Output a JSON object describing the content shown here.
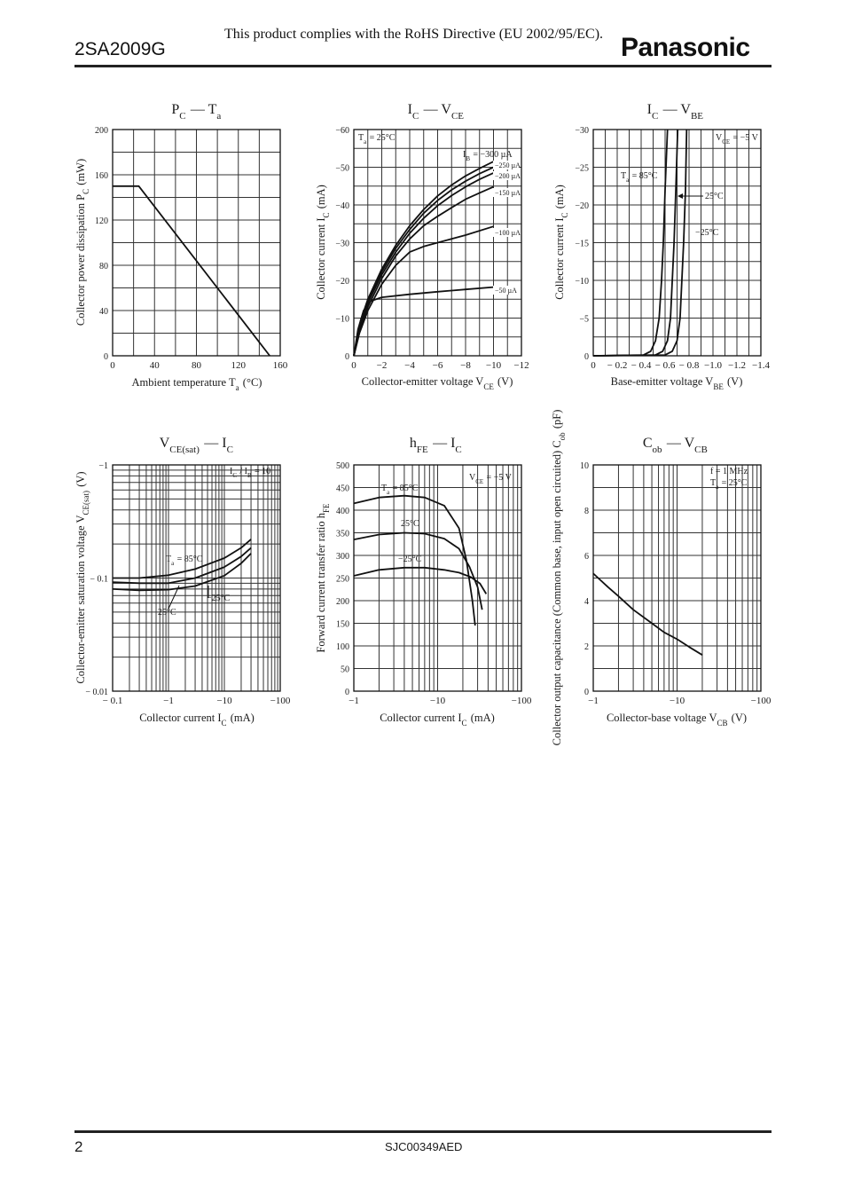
{
  "header": {
    "part_number": "2SA2009G",
    "rohs_notice": "This product complies with the RoHS Directive (EU 2002/95/EC).",
    "brand": "Panasonic"
  },
  "footer": {
    "page_number": "2",
    "doc_code": "SJC00349AED"
  },
  "chart_data": [
    {
      "id": "pc-ta",
      "type": "line",
      "title": "P_C — T_a",
      "xlabel": "Ambient temperature T_a (°C)",
      "ylabel": "Collector power dissipation P_C (mW)",
      "xlim": [
        0,
        160
      ],
      "ylim": [
        0,
        200
      ],
      "xscale": "linear",
      "yscale": "linear",
      "xticks": [
        0,
        40,
        80,
        120,
        160
      ],
      "yticks": [
        0,
        40,
        80,
        120,
        160,
        200
      ],
      "xtick_labels": [
        "0",
        "40",
        "80",
        "120",
        "160"
      ],
      "ytick_labels": [
        "0",
        "40",
        "80",
        "120",
        "160",
        "200"
      ],
      "grid": true,
      "series": [
        {
          "x": [
            0,
            25,
            150
          ],
          "y": [
            150,
            150,
            0
          ]
        }
      ],
      "annotations": []
    },
    {
      "id": "ic-vce",
      "type": "line",
      "title": "I_C — V_CE",
      "xlabel": "Collector-emitter voltage V_CE (V)",
      "ylabel": "Collector current I_C (mA)",
      "xlim": [
        0,
        -12
      ],
      "ylim": [
        0,
        -60
      ],
      "xscale": "linear",
      "yscale": "linear",
      "xticks": [
        0,
        -2,
        -4,
        -6,
        -8,
        -10,
        -12
      ],
      "yticks": [
        0,
        -10,
        -20,
        -30,
        -40,
        -50,
        -60
      ],
      "xtick_labels": [
        "0",
        "−2",
        "−4",
        "−6",
        "−8",
        "−10",
        "−12"
      ],
      "ytick_labels": [
        "0",
        "−10",
        "−20",
        "−30",
        "−40",
        "−50",
        "−60"
      ],
      "grid": true,
      "series": [
        {
          "name": "−50 µA",
          "x": [
            0,
            -0.3,
            -0.7,
            -1.2,
            -2,
            -4,
            -6,
            -8,
            -10
          ],
          "y": [
            0,
            -7,
            -12,
            -14.5,
            -15.5,
            -16.3,
            -17,
            -17.6,
            -18.2
          ]
        },
        {
          "name": "−100 µA",
          "x": [
            0,
            -0.4,
            -1,
            -2,
            -3,
            -4,
            -5,
            -6,
            -8,
            -10
          ],
          "y": [
            0,
            -6,
            -12,
            -19,
            -24,
            -27.5,
            -29,
            -30,
            -32,
            -34.3
          ]
        },
        {
          "name": "−150 µA",
          "x": [
            0,
            -0.5,
            -1,
            -2,
            -3,
            -4,
            -5,
            -6,
            -7,
            -8,
            -9,
            -10
          ],
          "y": [
            0,
            -8,
            -13,
            -20.5,
            -26.5,
            -31,
            -34.5,
            -37,
            -39.3,
            -41.5,
            -43.2,
            -44.8
          ]
        },
        {
          "name": "−200 µA",
          "x": [
            0,
            -0.5,
            -1,
            -2,
            -3,
            -4,
            -5,
            -6,
            -7,
            -8,
            -9,
            -10
          ],
          "y": [
            0,
            -8.5,
            -14,
            -21.5,
            -27.5,
            -32.5,
            -36.5,
            -39.8,
            -42.5,
            -44.8,
            -46.8,
            -48.5
          ]
        },
        {
          "name": "−250 µA",
          "x": [
            0,
            -0.5,
            -1,
            -2,
            -3,
            -4,
            -5,
            -6,
            -7,
            -8,
            -9,
            -10
          ],
          "y": [
            0,
            -9,
            -14.5,
            -22.3,
            -28.5,
            -33.5,
            -37.8,
            -41.2,
            -44,
            -46.3,
            -48.3,
            -50
          ]
        },
        {
          "name": "−300 µA",
          "x": [
            0,
            -0.5,
            -1,
            -2,
            -3,
            -4,
            -5,
            -6,
            -7,
            -8,
            -9,
            -10
          ],
          "y": [
            0,
            -9.5,
            -15,
            -23,
            -29.3,
            -34.5,
            -38.8,
            -42.4,
            -45.3,
            -47.7,
            -49.7,
            -51.5
          ]
        }
      ],
      "annotations": [
        "T_a = 25°C",
        "I_B = −300 µA",
        "−250 µA",
        "−200 µA",
        "−150 µA",
        "−100 µA",
        "−50 µA"
      ]
    },
    {
      "id": "ic-vbe",
      "type": "line",
      "title": "I_C — V_BE",
      "xlabel": "Base-emitter voltage V_BE (V)",
      "ylabel": "Collector current I_C (mA)",
      "xlim": [
        0,
        -1.4
      ],
      "ylim": [
        0,
        -30
      ],
      "xscale": "linear",
      "yscale": "linear",
      "xticks": [
        0,
        -0.2,
        -0.4,
        -0.6,
        -0.8,
        -1.0,
        -1.2,
        -1.4
      ],
      "yticks": [
        0,
        -5,
        -10,
        -15,
        -20,
        -25,
        -30
      ],
      "xtick_labels": [
        "0",
        "− 0.2",
        "− 0.4",
        "− 0.6",
        "− 0.8",
        "−1.0",
        "−1.2",
        "−1.4"
      ],
      "ytick_labels": [
        "0",
        "−5",
        "−10",
        "−15",
        "−20",
        "−25",
        "−30"
      ],
      "grid": true,
      "series": [
        {
          "name": "T_a = 85°C",
          "x": [
            0,
            -0.42,
            -0.48,
            -0.52,
            -0.55,
            -0.57,
            -0.585,
            -0.6,
            -0.62
          ],
          "y": [
            0,
            -0.1,
            -0.6,
            -2,
            -5,
            -10,
            -15,
            -22,
            -30
          ]
        },
        {
          "name": "25°C",
          "x": [
            0,
            -0.52,
            -0.58,
            -0.62,
            -0.645,
            -0.66,
            -0.675,
            -0.69,
            -0.705
          ],
          "y": [
            0,
            -0.1,
            -0.6,
            -2,
            -5,
            -10,
            -15,
            -22,
            -30
          ]
        },
        {
          "name": "−25°C",
          "x": [
            0,
            -0.6,
            -0.66,
            -0.7,
            -0.725,
            -0.74,
            -0.755,
            -0.77,
            -0.78
          ],
          "y": [
            0,
            -0.1,
            -0.6,
            -2,
            -5,
            -10,
            -15,
            -22,
            -30
          ]
        }
      ],
      "annotations": [
        "V_CE = −5 V",
        "T_a = 85°C",
        "25°C",
        "−25°C"
      ]
    },
    {
      "id": "vcesat-ic",
      "type": "line",
      "title": "V_CE(sat) — I_C",
      "xlabel": "Collector current I_C (mA)",
      "ylabel": "Collector-emitter saturation voltage V_CE(sat) (V)",
      "xlim": [
        -0.1,
        -100
      ],
      "ylim": [
        -0.01,
        -1
      ],
      "xscale": "log",
      "yscale": "log",
      "xticks": [
        -0.1,
        -1,
        -10,
        -100
      ],
      "yticks": [
        -0.01,
        -0.1,
        -1
      ],
      "xtick_labels": [
        "− 0.1",
        "−1",
        "−10",
        "−100"
      ],
      "ytick_labels": [
        "− 0.01",
        "− 0.1",
        "−1"
      ],
      "grid": true,
      "series": [
        {
          "name": "T_a = 85°C",
          "x": [
            -0.1,
            -0.3,
            -1,
            -3,
            -10,
            -20,
            -30
          ],
          "y": [
            -0.1,
            -0.1,
            -0.106,
            -0.12,
            -0.15,
            -0.185,
            -0.22
          ]
        },
        {
          "name": "25°C",
          "x": [
            -0.1,
            -0.3,
            -1,
            -3,
            -10,
            -20,
            -30
          ],
          "y": [
            -0.092,
            -0.09,
            -0.09,
            -0.1,
            -0.125,
            -0.155,
            -0.185
          ]
        },
        {
          "name": "−25°C",
          "x": [
            -0.1,
            -0.3,
            -1,
            -3,
            -10,
            -20,
            -30
          ],
          "y": [
            -0.08,
            -0.078,
            -0.079,
            -0.085,
            -0.105,
            -0.135,
            -0.165
          ]
        }
      ],
      "annotations": [
        "I_C / I_B = 10",
        "T_a = 85°C",
        "−25°C",
        "25°C"
      ]
    },
    {
      "id": "hfe-ic",
      "type": "line",
      "title": "h_FE — I_C",
      "xlabel": "Collector current I_C (mA)",
      "ylabel": "Forward current transfer ratio h_FE",
      "xlim": [
        -1,
        -100
      ],
      "ylim": [
        0,
        500
      ],
      "xscale": "log",
      "yscale": "linear",
      "xticks": [
        -1,
        -10,
        -100
      ],
      "yticks": [
        0,
        50,
        100,
        150,
        200,
        250,
        300,
        350,
        400,
        450,
        500
      ],
      "xtick_labels": [
        "−1",
        "−10",
        "−100"
      ],
      "ytick_labels": [
        "0",
        "50",
        "100",
        "150",
        "200",
        "250",
        "300",
        "350",
        "400",
        "450",
        "500"
      ],
      "grid": true,
      "series": [
        {
          "name": "T_a = 85°C",
          "x": [
            -1,
            -2,
            -4,
            -7,
            -12,
            -18,
            -22,
            -26,
            -28
          ],
          "y": [
            415,
            428,
            432,
            428,
            410,
            360,
            290,
            200,
            145
          ]
        },
        {
          "name": "25°C",
          "x": [
            -1,
            -2,
            -4,
            -7,
            -12,
            -18,
            -24,
            -30,
            -34
          ],
          "y": [
            335,
            346,
            350,
            348,
            337,
            315,
            275,
            230,
            180
          ]
        },
        {
          "name": "−25°C",
          "x": [
            -1,
            -2,
            -4,
            -7,
            -12,
            -18,
            -25,
            -32,
            -38
          ],
          "y": [
            255,
            268,
            273,
            273,
            268,
            262,
            252,
            238,
            215
          ]
        }
      ],
      "annotations": [
        "V_CE = −5 V",
        "T_a = 85°C",
        "25°C",
        "−25°C"
      ]
    },
    {
      "id": "cob-vcb",
      "type": "line",
      "title": "C_ob — V_CB",
      "xlabel": "Collector-base voltage V_CB (V)",
      "ylabel": "Collector output capacitance (Common base, input open circuited) C_ob (pF)",
      "xlim": [
        -1,
        -100
      ],
      "ylim": [
        0,
        10
      ],
      "xscale": "log",
      "yscale": "linear",
      "xticks": [
        -1,
        -10,
        -100
      ],
      "yticks": [
        0,
        2,
        4,
        6,
        8,
        10
      ],
      "xtick_labels": [
        "−1",
        "−10",
        "−100"
      ],
      "ytick_labels": [
        "0",
        "2",
        "4",
        "6",
        "8",
        "10"
      ],
      "grid": true,
      "series": [
        {
          "x": [
            -1,
            -1.5,
            -2,
            -3,
            -5,
            -7,
            -10,
            -14,
            -20
          ],
          "y": [
            5.2,
            4.6,
            4.2,
            3.6,
            3.0,
            2.6,
            2.3,
            1.95,
            1.6
          ]
        }
      ],
      "annotations": [
        "f = 1 MHz",
        "T_a = 25°C"
      ]
    }
  ]
}
